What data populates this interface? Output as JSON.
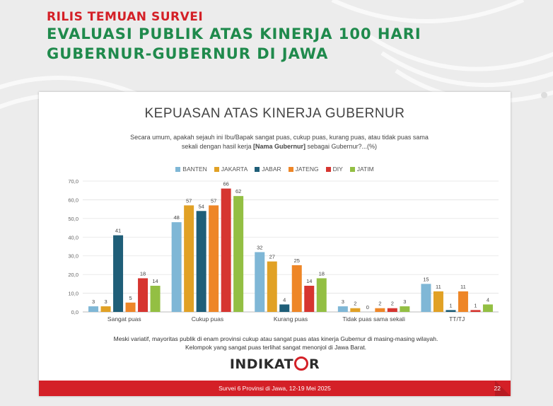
{
  "header": {
    "kicker": "RILIS TEMUAN SURVEI",
    "line1": "EVALUASI PUBLIK ATAS KINERJA 100 HARI",
    "line2": "GUBERNUR-GUBERNUR DI JAWA"
  },
  "slide": {
    "note_line1": "Meski variatif, mayoritas publik di enam provinsi cukup atau sangat puas atas kinerja Gubernur di masing-masing wilayah.",
    "note_line2": "Kelompok yang sangat puas terlihat sangat menonjol di Jawa Barat.",
    "logo_left": "INDIKAT",
    "logo_right": "R",
    "footer_text": "Survei 6 Provinsi di Jawa, 12-19 Mei 2025",
    "page_number": "22"
  },
  "colors": {
    "kicker": "#d42027",
    "headline": "#1f8a4c",
    "footer": "#d42027"
  },
  "chart_data": {
    "type": "bar",
    "title": "KEPUASAN ATAS KINERJA GUBERNUR",
    "subtitle_line1": "Secara umum, apakah sejauh ini Ibu/Bapak sangat puas, cukup puas, kurang puas, atau tidak puas sama",
    "subtitle_line2_pre": "sekali dengan hasil kerja ",
    "subtitle_line2_bold": "[Nama Gubernur]",
    "subtitle_line2_post": " sebagai Gubernur?...(%)",
    "categories": [
      "Sangat puas",
      "Cukup puas",
      "Kurang puas",
      "Tidak puas sama sekali",
      "TT/TJ"
    ],
    "series": [
      {
        "name": "BANTEN",
        "color": "#7fb7d6",
        "values": [
          3,
          48,
          32,
          3,
          15
        ]
      },
      {
        "name": "JAKARTA",
        "color": "#e1a125",
        "values": [
          3,
          57,
          27,
          2,
          11
        ]
      },
      {
        "name": "JABAR",
        "color": "#1f5e78",
        "values": [
          41,
          54,
          4,
          0,
          1
        ]
      },
      {
        "name": "JATENG",
        "color": "#ee8627",
        "values": [
          5,
          57,
          25,
          2,
          11
        ]
      },
      {
        "name": "DIY",
        "color": "#d63530",
        "values": [
          18,
          66,
          14,
          2,
          1
        ]
      },
      {
        "name": "JATIM",
        "color": "#93bf43",
        "values": [
          14,
          62,
          18,
          3,
          4
        ]
      }
    ],
    "yticks": [
      "0,0",
      "10,0",
      "20,0",
      "30,0",
      "40,0",
      "50,0",
      "60,0",
      "70,0"
    ],
    "ylim": [
      0,
      70
    ],
    "legend_position": "top"
  }
}
